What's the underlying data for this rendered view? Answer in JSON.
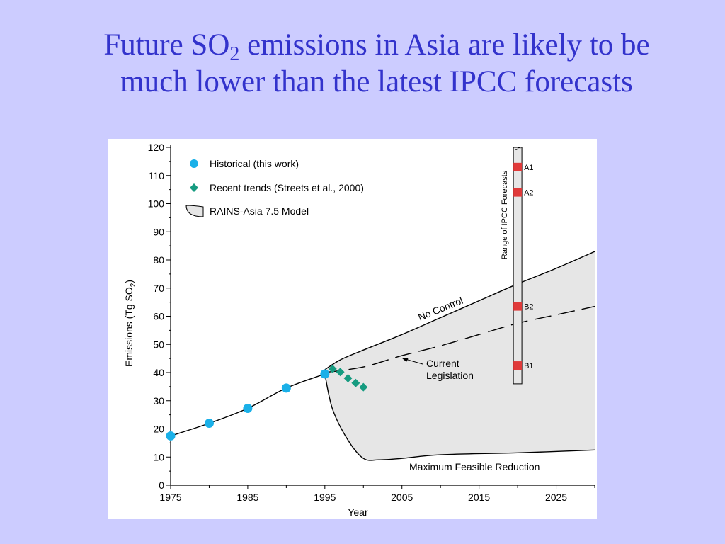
{
  "slide": {
    "title_part1": "Future SO",
    "title_sub": "2",
    "title_part2": " emissions in Asia are likely to be",
    "title_line2": "much lower than the latest IPCC forecasts"
  },
  "colors": {
    "background": "#ccccff",
    "title": "#3333cc",
    "historical": "#1ab0e8",
    "recent_trends": "#169b80",
    "ipcc_marker": "#e03a3a",
    "rains_fill": "#e6e6e6"
  },
  "chart_data": {
    "type": "line",
    "xlabel": "Year",
    "ylabel_main": "Emissions (Tg SO",
    "ylabel_sub": "2",
    "ylabel_end": ")",
    "xlim": [
      1975,
      2030
    ],
    "ylim": [
      0,
      120
    ],
    "x_ticks": [
      1975,
      1985,
      1995,
      2005,
      2015,
      2025
    ],
    "y_ticks": [
      0,
      10,
      20,
      30,
      40,
      50,
      60,
      70,
      80,
      90,
      100,
      110,
      120
    ],
    "grid": false,
    "legend_position": "top-left",
    "legend": [
      {
        "label": "Historical (this work)",
        "marker": "circle"
      },
      {
        "label": "Recent trends (Streets et al., 2000)",
        "marker": "diamond"
      },
      {
        "label": "RAINS-Asia 7.5 Model",
        "marker": "band"
      }
    ],
    "series": [
      {
        "name": "Historical (this work)",
        "x": [
          1975,
          1980,
          1985,
          1990,
          1995
        ],
        "y": [
          17.5,
          22,
          27.3,
          34.5,
          39.5
        ]
      },
      {
        "name": "Recent trends (Streets et al., 2000)",
        "x": [
          1996,
          1997,
          1998,
          1999,
          2000
        ],
        "y": [
          41.3,
          40.2,
          38.0,
          36.3,
          34.8
        ]
      }
    ],
    "historical_curve": {
      "x": [
        1975,
        1980,
        1985,
        1990,
        1995
      ],
      "y": [
        17.5,
        22,
        27.3,
        34.5,
        39.5
      ]
    },
    "no_control": {
      "label": "No Control",
      "x": [
        1995,
        1997,
        2000,
        2005,
        2010,
        2015,
        2020,
        2025,
        2030
      ],
      "y": [
        41,
        44.5,
        48,
        53.5,
        59.5,
        65.5,
        71.5,
        77,
        83
      ]
    },
    "current_legislation": {
      "label_line1": "Current",
      "label_line2": "Legislation",
      "x": [
        1995,
        2000,
        2005,
        2010,
        2015,
        2020,
        2025,
        2030
      ],
      "y": [
        40,
        42,
        46,
        49.5,
        53.5,
        57.5,
        60.5,
        63.5
      ]
    },
    "max_feasible_reduction": {
      "label": "Maximum Feasible Reduction",
      "x": [
        1995,
        1996,
        1998,
        2000,
        2002,
        2005,
        2010,
        2020,
        2030
      ],
      "y": [
        39.5,
        27,
        16,
        9.5,
        9,
        9.5,
        10.8,
        11.5,
        12.5
      ]
    },
    "ipcc": {
      "label": "Range of IPCC Forecasts",
      "year": 2020,
      "range": [
        36,
        120
      ],
      "scenarios": [
        {
          "name": "A1",
          "value": 113
        },
        {
          "name": "A2",
          "value": 104
        },
        {
          "name": "B2",
          "value": 63.5
        },
        {
          "name": "B1",
          "value": 42.5
        }
      ]
    }
  }
}
